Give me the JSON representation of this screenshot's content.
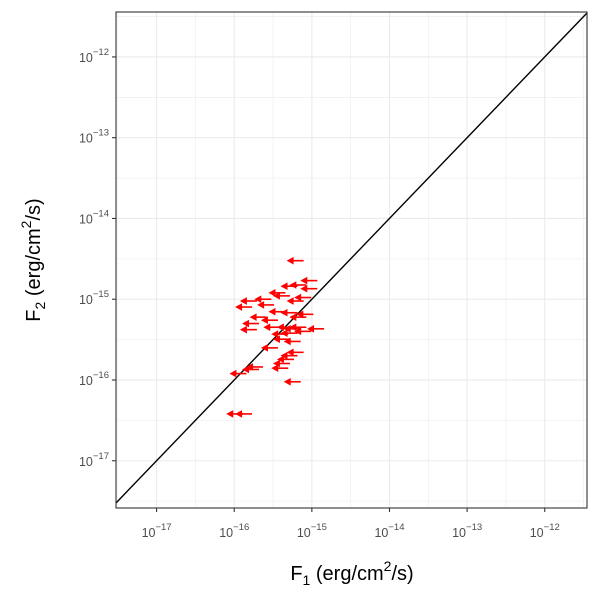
{
  "chart_data": {
    "type": "scatter",
    "xlabel": "F1 (erg/cm2/s)",
    "ylabel": "F2 (erg/cm2/s)",
    "x_scale": "log10",
    "y_scale": "log10",
    "xlim": [
      3e-18,
      3.5e-12
    ],
    "ylim": [
      2.6e-18,
      3.6e-12
    ],
    "x_ticks": [
      1e-17,
      1e-16,
      1e-15,
      1e-14,
      1e-13,
      1e-12
    ],
    "y_ticks": [
      1e-17,
      1e-16,
      1e-15,
      1e-14,
      1e-13,
      1e-12
    ],
    "x_tick_labels": [
      {
        "base": "10",
        "exp": "−17"
      },
      {
        "base": "10",
        "exp": "−16"
      },
      {
        "base": "10",
        "exp": "−15"
      },
      {
        "base": "10",
        "exp": "−14"
      },
      {
        "base": "10",
        "exp": "−13"
      },
      {
        "base": "10",
        "exp": "−12"
      }
    ],
    "y_tick_labels": [
      {
        "base": "10",
        "exp": "−17"
      },
      {
        "base": "10",
        "exp": "−16"
      },
      {
        "base": "10",
        "exp": "−15"
      },
      {
        "base": "10",
        "exp": "−14"
      },
      {
        "base": "10",
        "exp": "−13"
      },
      {
        "base": "10",
        "exp": "−12"
      }
    ],
    "grid": true,
    "reference_line": "y = x",
    "marker": "upper-limit arrow pointing left",
    "colors": {
      "points": "#ff0000",
      "line": "#000000",
      "grid": "#ebebeb",
      "frame": "#333333"
    },
    "series": [
      {
        "points": [
          {
            "x": 6e-16,
            "y": 3e-15
          },
          {
            "x": 9e-16,
            "y": 1.7e-15
          },
          {
            "x": 9e-16,
            "y": 1.35e-15
          },
          {
            "x": 6.5e-16,
            "y": 1.5e-15
          },
          {
            "x": 5e-16,
            "y": 1.45e-15
          },
          {
            "x": 4e-16,
            "y": 1.1e-15
          },
          {
            "x": 3.5e-16,
            "y": 1.2e-15
          },
          {
            "x": 2.3e-16,
            "y": 1e-15
          },
          {
            "x": 2.5e-16,
            "y": 8.5e-16
          },
          {
            "x": 1.5e-16,
            "y": 9.5e-16
          },
          {
            "x": 1.3e-16,
            "y": 8e-16
          },
          {
            "x": 7.5e-16,
            "y": 1.05e-15
          },
          {
            "x": 6e-16,
            "y": 9.5e-16
          },
          {
            "x": 8e-16,
            "y": 6.5e-16
          },
          {
            "x": 6.5e-16,
            "y": 6e-16
          },
          {
            "x": 5e-16,
            "y": 6.8e-16
          },
          {
            "x": 3.5e-16,
            "y": 7e-16
          },
          {
            "x": 2.8e-16,
            "y": 5.5e-16
          },
          {
            "x": 2e-16,
            "y": 6e-16
          },
          {
            "x": 1.6e-16,
            "y": 5e-16
          },
          {
            "x": 1.5e-16,
            "y": 4.2e-16
          },
          {
            "x": 3e-16,
            "y": 4.5e-16
          },
          {
            "x": 4.5e-16,
            "y": 4.5e-16
          },
          {
            "x": 5.5e-16,
            "y": 4.3e-16
          },
          {
            "x": 6.5e-16,
            "y": 4.5e-16
          },
          {
            "x": 7.5e-16,
            "y": 4e-16
          },
          {
            "x": 1.1e-15,
            "y": 4.3e-16
          },
          {
            "x": 5e-16,
            "y": 3.8e-16
          },
          {
            "x": 3.8e-16,
            "y": 3.7e-16
          },
          {
            "x": 5.5e-16,
            "y": 3e-16
          },
          {
            "x": 4e-16,
            "y": 3.2e-16
          },
          {
            "x": 2.8e-16,
            "y": 2.5e-16
          },
          {
            "x": 6e-16,
            "y": 2.2e-16
          },
          {
            "x": 5e-16,
            "y": 2e-16
          },
          {
            "x": 4.5e-16,
            "y": 1.8e-16
          },
          {
            "x": 4e-16,
            "y": 1.6e-16
          },
          {
            "x": 3.8e-16,
            "y": 1.4e-16
          },
          {
            "x": 1.8e-16,
            "y": 1.45e-16
          },
          {
            "x": 1.6e-16,
            "y": 1.35e-16
          },
          {
            "x": 1.1e-16,
            "y": 1.2e-16
          },
          {
            "x": 5.5e-16,
            "y": 9.5e-17
          },
          {
            "x": 1.3e-16,
            "y": 3.8e-17
          },
          {
            "x": 1e-16,
            "y": 3.8e-17
          }
        ]
      }
    ]
  }
}
